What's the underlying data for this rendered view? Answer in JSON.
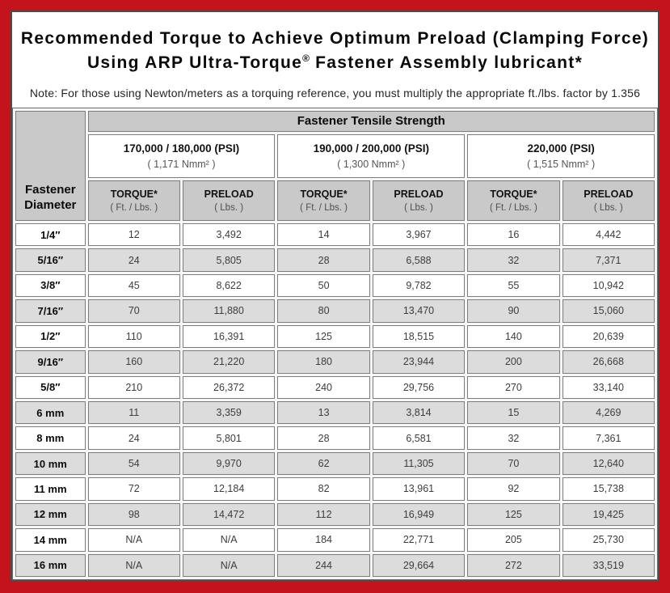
{
  "page": {
    "frame_color": "#c3141d",
    "panel_border_color": "#4c4c4c",
    "header_gray": "#c9c9c9",
    "stripe_gray": "#dcdcdc"
  },
  "title": {
    "line1": "Recommended Torque to Achieve Optimum Preload (Clamping Force)",
    "line2_pre": "Using ARP Ultra-Torque",
    "line2_sup": "®",
    "line2_post": " Fastener Assembly lubricant*",
    "note": "Note: For those using Newton/meters as a torquing reference, you must multiply the appropriate ft./lbs. factor by 1.356"
  },
  "table": {
    "corner_line1": "Fastener",
    "corner_line2": "Diameter",
    "tensile_header": "Fastener Tensile Strength",
    "strength_groups": [
      {
        "psi": "170,000 / 180,000 (PSI)",
        "nmm": "( 1,171 Nmm² )"
      },
      {
        "psi": "190,000 / 200,000 (PSI)",
        "nmm": "( 1,300 Nmm² )"
      },
      {
        "psi": "220,000 (PSI)",
        "nmm": "( 1,515 Nmm² )"
      }
    ],
    "sub_headers": [
      {
        "label": "TORQUE*",
        "unit": "( Ft. / Lbs. )"
      },
      {
        "label": "PRELOAD",
        "unit": "( Lbs. )"
      }
    ],
    "rows": [
      {
        "diameter": "1/4″",
        "values": [
          "12",
          "3,492",
          "14",
          "3,967",
          "16",
          "4,442"
        ]
      },
      {
        "diameter": "5/16″",
        "values": [
          "24",
          "5,805",
          "28",
          "6,588",
          "32",
          "7,371"
        ]
      },
      {
        "diameter": "3/8″",
        "values": [
          "45",
          "8,622",
          "50",
          "9,782",
          "55",
          "10,942"
        ]
      },
      {
        "diameter": "7/16″",
        "values": [
          "70",
          "11,880",
          "80",
          "13,470",
          "90",
          "15,060"
        ]
      },
      {
        "diameter": "1/2″",
        "values": [
          "110",
          "16,391",
          "125",
          "18,515",
          "140",
          "20,639"
        ]
      },
      {
        "diameter": "9/16″",
        "values": [
          "160",
          "21,220",
          "180",
          "23,944",
          "200",
          "26,668"
        ]
      },
      {
        "diameter": "5/8″",
        "values": [
          "210",
          "26,372",
          "240",
          "29,756",
          "270",
          "33,140"
        ]
      },
      {
        "diameter": "6 mm",
        "values": [
          "11",
          "3,359",
          "13",
          "3,814",
          "15",
          "4,269"
        ]
      },
      {
        "diameter": "8 mm",
        "values": [
          "24",
          "5,801",
          "28",
          "6,581",
          "32",
          "7,361"
        ]
      },
      {
        "diameter": "10 mm",
        "values": [
          "54",
          "9,970",
          "62",
          "11,305",
          "70",
          "12,640"
        ]
      },
      {
        "diameter": "11 mm",
        "values": [
          "72",
          "12,184",
          "82",
          "13,961",
          "92",
          "15,738"
        ]
      },
      {
        "diameter": "12 mm",
        "values": [
          "98",
          "14,472",
          "112",
          "16,949",
          "125",
          "19,425"
        ]
      },
      {
        "diameter": "14 mm",
        "values": [
          "N/A",
          "N/A",
          "184",
          "22,771",
          "205",
          "25,730"
        ]
      },
      {
        "diameter": "16 mm",
        "values": [
          "N/A",
          "N/A",
          "244",
          "29,664",
          "272",
          "33,519"
        ]
      }
    ]
  }
}
